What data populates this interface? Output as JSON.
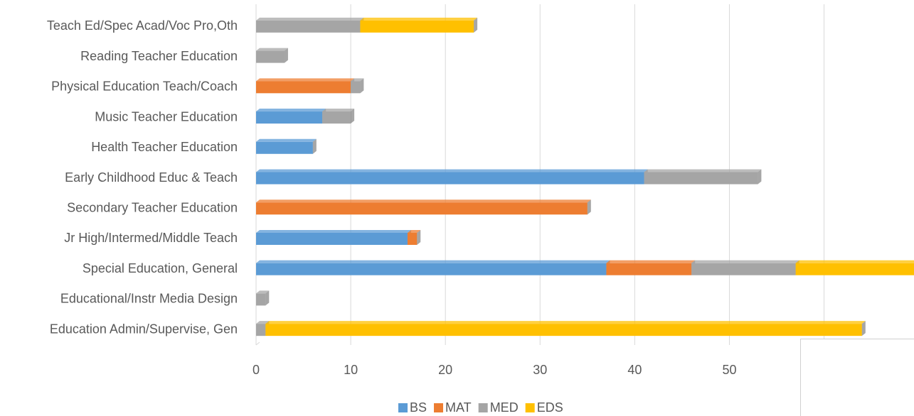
{
  "chart_data": {
    "type": "stacked-bar-horizontal",
    "categories": [
      "Teach Ed/Spec Acad/Voc Pro,Oth",
      "Reading Teacher Education",
      "Physical Education Teach/Coach",
      "Music Teacher Education",
      "Health Teacher Education",
      "Early Childhood Educ & Teach",
      "Secondary Teacher Education",
      "Jr High/Intermed/Middle Teach",
      "Special Education, General",
      "Educational/Instr Media Design",
      "Education Admin/Supervise, Gen"
    ],
    "series": [
      {
        "name": "BS",
        "color": "#5b9bd5",
        "values": [
          null,
          null,
          null,
          7,
          6,
          41,
          null,
          16,
          37,
          null,
          null
        ]
      },
      {
        "name": "MAT",
        "color": "#ed7d31",
        "values": [
          null,
          null,
          10,
          null,
          null,
          null,
          35,
          1,
          9,
          null,
          null
        ]
      },
      {
        "name": "MED",
        "color": "#a5a5a5",
        "values": [
          11,
          3,
          1,
          3,
          null,
          12,
          null,
          null,
          11,
          1,
          1
        ]
      },
      {
        "name": "EDS",
        "color": "#ffc000",
        "values": [
          12,
          null,
          null,
          null,
          null,
          null,
          null,
          null,
          14,
          null,
          63
        ]
      }
    ],
    "xlim": [
      0,
      69.5
    ],
    "xticks": [
      0,
      10,
      20,
      30,
      40,
      50,
      60
    ],
    "grid": true,
    "legend": "bottom"
  }
}
